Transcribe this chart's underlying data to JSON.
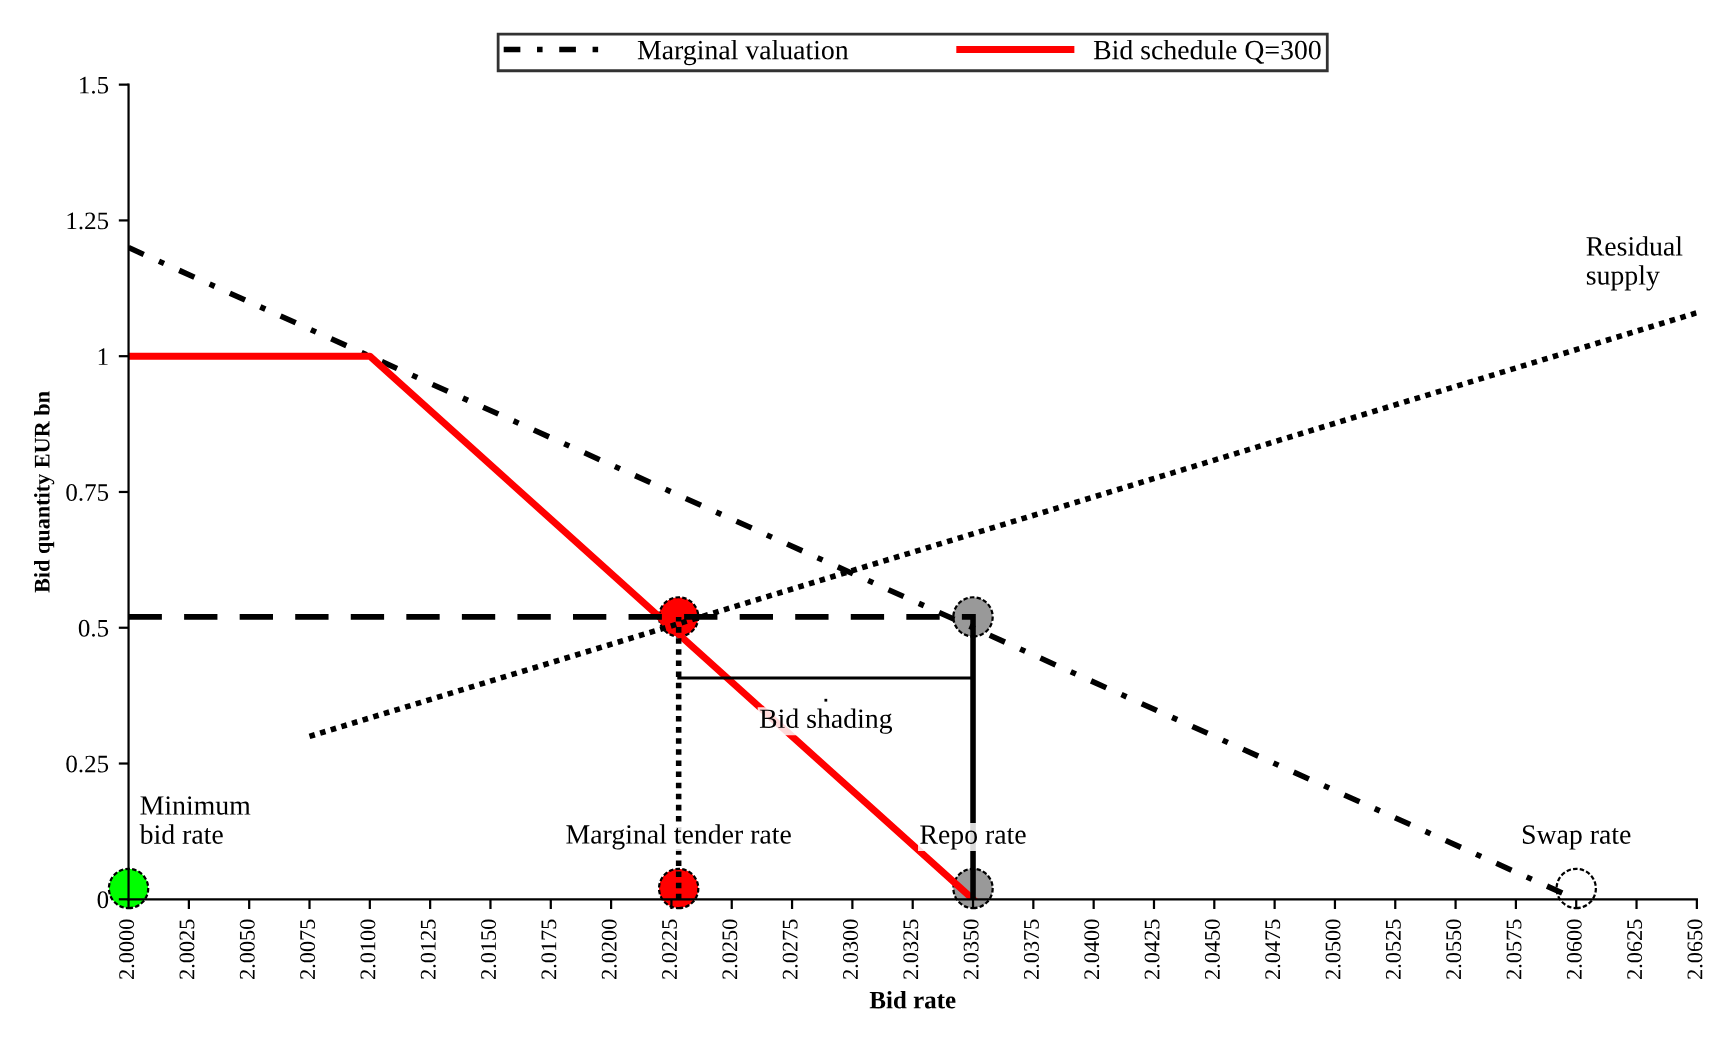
{
  "chart_data": {
    "type": "line",
    "xlabel": "Bid rate",
    "ylabel": "Bid quantity EUR bn",
    "xlim": [
      2.0,
      2.065
    ],
    "ylim": [
      0,
      1.5
    ],
    "xticks": [
      {
        "value": 2.0,
        "label": "2.0000"
      },
      {
        "value": 2.0025,
        "label": "2.0025"
      },
      {
        "value": 2.005,
        "label": "2.0050"
      },
      {
        "value": 2.0075,
        "label": "2.0075"
      },
      {
        "value": 2.01,
        "label": "2.0100"
      },
      {
        "value": 2.0125,
        "label": "2.0125"
      },
      {
        "value": 2.015,
        "label": "2.0150"
      },
      {
        "value": 2.0175,
        "label": "2.0175"
      },
      {
        "value": 2.02,
        "label": "2.0200"
      },
      {
        "value": 2.0225,
        "label": "2.0225"
      },
      {
        "value": 2.025,
        "label": "2.0250"
      },
      {
        "value": 2.0275,
        "label": "2.0275"
      },
      {
        "value": 2.03,
        "label": "2.0300"
      },
      {
        "value": 2.0325,
        "label": "2.0325"
      },
      {
        "value": 2.035,
        "label": "2.0350"
      },
      {
        "value": 2.0375,
        "label": "2.0375"
      },
      {
        "value": 2.04,
        "label": "2.0400"
      },
      {
        "value": 2.0425,
        "label": "2.0425"
      },
      {
        "value": 2.045,
        "label": "2.0450"
      },
      {
        "value": 2.0475,
        "label": "2.0475"
      },
      {
        "value": 2.05,
        "label": "2.0500"
      },
      {
        "value": 2.0525,
        "label": "2.0525"
      },
      {
        "value": 2.055,
        "label": "2.0550"
      },
      {
        "value": 2.0575,
        "label": "2.0575"
      },
      {
        "value": 2.06,
        "label": "2.0600"
      },
      {
        "value": 2.0625,
        "label": "2.0625"
      },
      {
        "value": 2.065,
        "label": "2.0650"
      }
    ],
    "yticks": [
      0,
      0.25,
      0.5,
      0.75,
      1,
      1.25,
      1.5
    ],
    "grid": false,
    "legend": "top",
    "series": [
      {
        "name": "Marginal valuation",
        "color": "#000000",
        "line_style": "dashdot",
        "x": [
          2.0,
          2.06
        ],
        "values": [
          1.2,
          0
        ]
      },
      {
        "name": "Bid schedule Q=300",
        "color": "#ff0000",
        "line_style": "solid",
        "x": [
          2.0,
          2.01,
          2.035
        ],
        "values": [
          1.0,
          1.0,
          0
        ]
      },
      {
        "color": "#000000",
        "line_style": "dotted",
        "x": [
          2.0075,
          2.065
        ],
        "values": [
          0.3,
          1.08
        ]
      },
      {
        "color": "#000000",
        "line_style": "dashed",
        "x": [
          2.0,
          2.035
        ],
        "values": [
          0.52,
          0.52
        ]
      },
      {
        "color": "#000000",
        "line_style": "dotted",
        "x": [
          2.0228,
          2.0228
        ],
        "values": [
          0,
          0.52
        ]
      },
      {
        "color": "#000000",
        "line_style": "solid",
        "x": [
          2.035,
          2.035
        ],
        "values": [
          0,
          0.52
        ]
      },
      {
        "type": "scatter",
        "marker": "circle",
        "x": [
          2.0,
          2.0228,
          2.0228,
          2.035,
          2.035,
          2.06
        ],
        "values": [
          0.02,
          0.52,
          0.02,
          0.52,
          0.02,
          0.02
        ],
        "colors": [
          "#00ff00",
          "#ff0000",
          "#ff0000",
          "#999999",
          "#999999",
          "#ffffff"
        ]
      }
    ],
    "annotations": [
      {
        "text": "Minimum\nbid rate",
        "x": 2.0,
        "y": 0.02
      },
      {
        "text": "Marginal tender rate",
        "x": 2.0228,
        "y": 0.02
      },
      {
        "text": "Repo rate",
        "x": 2.035,
        "y": 0.02
      },
      {
        "text": "Swap rate",
        "x": 2.06,
        "y": 0.02
      },
      "Residual\nsupply",
      "Bid shading"
    ]
  }
}
